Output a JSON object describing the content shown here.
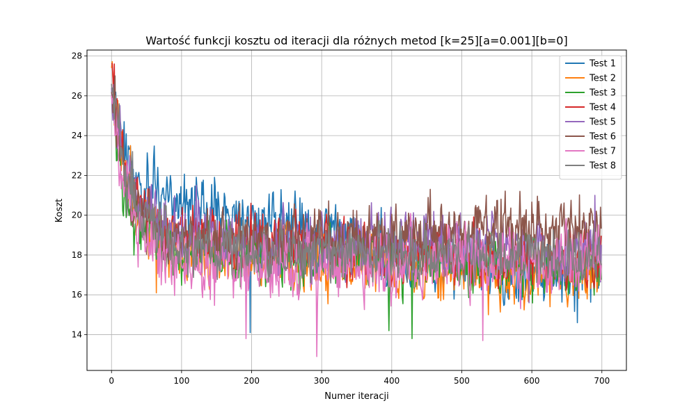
{
  "chart_data": {
    "type": "line",
    "title": "Wartość funkcji kosztu od iteracji dla różnych metod [k=25][a=0.001][b=0]",
    "xlabel": "Numer iteracji",
    "ylabel": "Koszt",
    "xlim": [
      -35,
      735
    ],
    "ylim": [
      12.2,
      28.3
    ],
    "xticks": [
      0,
      100,
      200,
      300,
      400,
      500,
      600,
      700
    ],
    "yticks": [
      14,
      16,
      18,
      20,
      22,
      24,
      26,
      28
    ],
    "grid": true,
    "legend_position": "top-right",
    "n_points": 700,
    "series": [
      {
        "name": "Test 1",
        "color": "#1f77b4",
        "start": 26.2,
        "early_level": 20.6,
        "late_level": 16.9,
        "decay": 28,
        "shift": 330,
        "width": 90,
        "noise": 1.3,
        "extremes": [
          {
            "x": 107,
            "y": 21.3
          },
          {
            "x": 198,
            "y": 14.1
          },
          {
            "x": 665,
            "y": 14.6
          }
        ]
      },
      {
        "name": "Test 2",
        "color": "#ff7f0e",
        "start": 27.4,
        "early_level": 18.3,
        "late_level": 17.0,
        "decay": 24,
        "shift": 300,
        "width": 110,
        "noise": 1.2,
        "extremes": [
          {
            "x": 27,
            "y": 23.5
          },
          {
            "x": 64,
            "y": 16.1
          },
          {
            "x": 538,
            "y": 15.0
          }
        ]
      },
      {
        "name": "Test 3",
        "color": "#2ca02c",
        "start": 26.0,
        "early_level": 18.4,
        "late_level": 17.2,
        "decay": 20,
        "shift": 320,
        "width": 120,
        "noise": 1.25,
        "extremes": [
          {
            "x": 32,
            "y": 18.0
          },
          {
            "x": 396,
            "y": 14.2
          },
          {
            "x": 429,
            "y": 13.8
          }
        ]
      },
      {
        "name": "Test 4",
        "color": "#d62728",
        "start": 27.6,
        "early_level": 19.1,
        "late_level": 17.6,
        "decay": 26,
        "shift": 340,
        "width": 120,
        "noise": 1.2,
        "extremes": [
          {
            "x": 4,
            "y": 27.6
          },
          {
            "x": 199,
            "y": 20.6
          },
          {
            "x": 263,
            "y": 20.3
          }
        ]
      },
      {
        "name": "Test 5",
        "color": "#9467bd",
        "start": 26.4,
        "early_level": 18.8,
        "late_level": 18.4,
        "decay": 28,
        "shift": 300,
        "width": 120,
        "noise": 1.3,
        "extremes": [
          {
            "x": 121,
            "y": 21.5
          },
          {
            "x": 690,
            "y": 21.0
          },
          {
            "x": 596,
            "y": 15.6
          }
        ]
      },
      {
        "name": "Test 6",
        "color": "#8c564b",
        "start": 26.2,
        "early_level": 18.6,
        "late_level": 19.3,
        "decay": 25,
        "shift": 330,
        "width": 100,
        "noise": 1.25,
        "extremes": [
          {
            "x": 5,
            "y": 27.0
          },
          {
            "x": 455,
            "y": 21.3
          },
          {
            "x": 583,
            "y": 21.2
          }
        ]
      },
      {
        "name": "Test 7",
        "color": "#e377c2",
        "start": 26.0,
        "early_level": 17.5,
        "late_level": 17.6,
        "decay": 26,
        "shift": 300,
        "width": 110,
        "noise": 1.35,
        "extremes": [
          {
            "x": 293,
            "y": 12.9
          },
          {
            "x": 530,
            "y": 13.7
          },
          {
            "x": 192,
            "y": 13.8
          }
        ]
      },
      {
        "name": "Test 8",
        "color": "#7f7f7f",
        "start": 26.6,
        "early_level": 18.6,
        "late_level": 17.8,
        "decay": 26,
        "shift": 320,
        "width": 110,
        "noise": 1.15,
        "extremes": [
          {
            "x": 11,
            "y": 25.6
          },
          {
            "x": 30,
            "y": 23.2
          }
        ]
      }
    ]
  }
}
